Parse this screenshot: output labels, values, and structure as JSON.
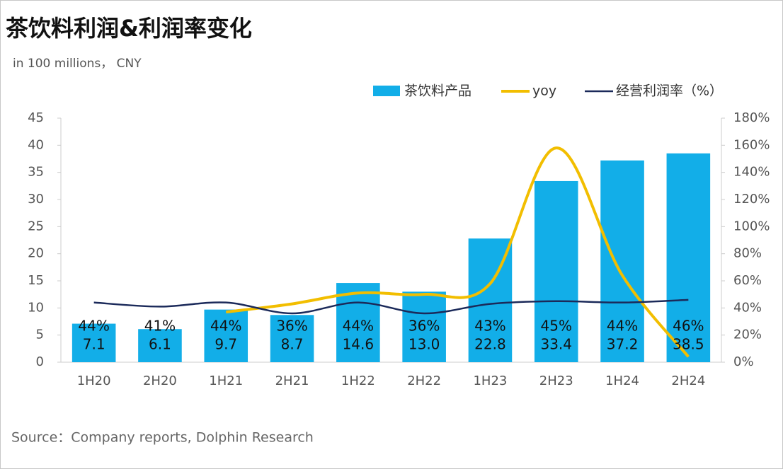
{
  "chart_data": {
    "type": "bar",
    "title": "茶饮料利润&利润率变化",
    "subtitle": "in 100 millions， CNY",
    "source": "Source：Company reports, Dolphin Research",
    "categories": [
      "1H20",
      "2H20",
      "1H21",
      "2H21",
      "1H22",
      "2H22",
      "1H23",
      "2H23",
      "1H24",
      "2H24"
    ],
    "series": [
      {
        "name": "茶饮料产品",
        "type": "bar",
        "axis": "y",
        "color": "#12aee8",
        "values": [
          7.1,
          6.1,
          9.7,
          8.7,
          14.6,
          13.0,
          22.8,
          33.4,
          37.2,
          38.5
        ],
        "value_labels": [
          "7.1",
          "6.1",
          "9.7",
          "8.7",
          "14.6",
          "13.0",
          "22.8",
          "33.4",
          "37.2",
          "38.5"
        ]
      },
      {
        "name": "yoy",
        "type": "line",
        "axis": "y2",
        "color": "#f2be00",
        "values": [
          null,
          null,
          37,
          43,
          51,
          50,
          58,
          158,
          64,
          4
        ]
      },
      {
        "name": "经营利润率（%）",
        "type": "line",
        "axis": "y2",
        "color": "#1b2a5a",
        "values": [
          44,
          41,
          44,
          36,
          44,
          36,
          43,
          45,
          44,
          46
        ],
        "value_labels": [
          "44%",
          "41%",
          "44%",
          "36%",
          "44%",
          "36%",
          "43%",
          "45%",
          "44%",
          "46%"
        ]
      }
    ],
    "ylim": [
      0,
      45
    ],
    "yticks": [
      0,
      5,
      10,
      15,
      20,
      25,
      30,
      35,
      40,
      45
    ],
    "y2lim": [
      0,
      180
    ],
    "y2ticks": [
      {
        "value": 0,
        "label": "0%"
      },
      {
        "value": 20,
        "label": "20%"
      },
      {
        "value": 40,
        "label": "40%"
      },
      {
        "value": 60,
        "label": "60%"
      },
      {
        "value": 80,
        "label": "80%"
      },
      {
        "value": 100,
        "label": "100%"
      },
      {
        "value": 120,
        "label": "120%"
      },
      {
        "value": 140,
        "label": "140%"
      },
      {
        "value": 160,
        "label": "160%"
      },
      {
        "value": 180,
        "label": "180%"
      }
    ],
    "grid": false
  }
}
